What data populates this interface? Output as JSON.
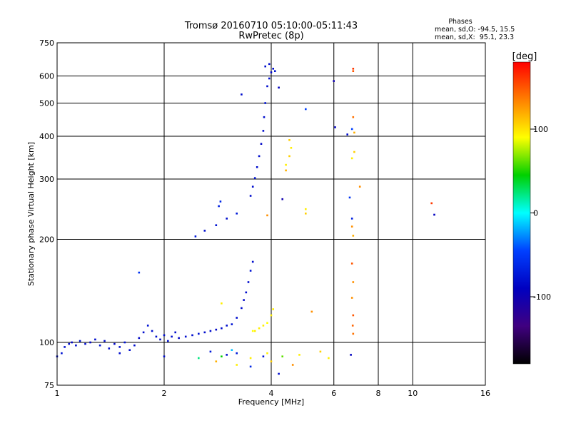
{
  "title": {
    "line1": "Tromsø 20160710 05:10:00-05:11:43",
    "line2": "RwPretec (8p)"
  },
  "phase_info": {
    "heading": "Phases",
    "line_o": "mean, sd,O: -94.5, 15.5",
    "line_x": "mean, sd,X:  95.1, 23.3"
  },
  "colorbar": {
    "label": "[deg]",
    "ticks": [
      "100",
      "0",
      "-100"
    ],
    "tick_values": [
      100,
      0,
      -100
    ],
    "range": [
      -180,
      180
    ],
    "colors": [
      "#ff0000",
      "#ff8000",
      "#ffff00",
      "#00d000",
      "#00ffff",
      "#0040ff",
      "#0000c0",
      "#400080",
      "#000000"
    ]
  },
  "chart_data": {
    "type": "scatter",
    "xlabel": "Frequency [MHz]",
    "ylabel": "Stationary phase Virtual Height [km]",
    "xscale": "log",
    "yscale": "log",
    "xlim": [
      1,
      16
    ],
    "ylim": [
      75,
      750
    ],
    "xticks": [
      1,
      2,
      4,
      6,
      8,
      10,
      16
    ],
    "xtick_labels": [
      "1",
      "2",
      "4",
      "6",
      "8",
      "10",
      "16"
    ],
    "yticks": [
      75,
      100,
      200,
      300,
      400,
      500,
      600,
      750
    ],
    "ytick_labels": [
      "75",
      "100",
      "200",
      "300",
      "400",
      "500",
      "600",
      "750"
    ],
    "grid": true,
    "series": [
      {
        "points": [
          [
            1.0,
            91,
            -100
          ],
          [
            1.03,
            93,
            -95
          ],
          [
            1.05,
            97,
            -100
          ],
          [
            1.08,
            99,
            -100
          ],
          [
            1.1,
            100,
            -105
          ],
          [
            1.13,
            98,
            -100
          ],
          [
            1.16,
            101,
            -95
          ],
          [
            1.2,
            99,
            -100
          ],
          [
            1.24,
            100,
            -105
          ],
          [
            1.28,
            102,
            -100
          ],
          [
            1.32,
            98,
            -95
          ],
          [
            1.36,
            101,
            -100
          ],
          [
            1.4,
            96,
            -100
          ],
          [
            1.45,
            99,
            -105
          ],
          [
            1.5,
            97,
            -100
          ],
          [
            1.55,
            100,
            -95
          ],
          [
            1.6,
            95,
            -100
          ],
          [
            1.65,
            98,
            -100
          ],
          [
            1.7,
            103,
            -105
          ],
          [
            1.75,
            107,
            -100
          ],
          [
            1.8,
            112,
            -95
          ],
          [
            1.85,
            108,
            -100
          ],
          [
            1.9,
            104,
            -100
          ],
          [
            1.95,
            102,
            -105
          ],
          [
            2.0,
            105,
            -100
          ],
          [
            2.05,
            101,
            -95
          ],
          [
            2.1,
            104,
            -100
          ],
          [
            2.15,
            107,
            -100
          ],
          [
            2.2,
            103,
            -105
          ],
          [
            2.3,
            104,
            -100
          ],
          [
            2.4,
            105,
            -100
          ],
          [
            2.5,
            106,
            -95
          ],
          [
            2.6,
            107,
            -100
          ],
          [
            2.7,
            108,
            -100
          ],
          [
            2.8,
            109,
            -105
          ],
          [
            2.9,
            110,
            -100
          ],
          [
            3.0,
            112,
            -100
          ],
          [
            3.1,
            113,
            -95
          ],
          [
            3.2,
            118,
            -100
          ],
          [
            3.3,
            126,
            -100
          ],
          [
            3.35,
            133,
            -105
          ],
          [
            3.4,
            140,
            -100
          ],
          [
            3.45,
            150,
            -100
          ],
          [
            3.5,
            162,
            -95
          ],
          [
            3.55,
            172,
            -100
          ],
          [
            2.45,
            204,
            -90
          ],
          [
            2.6,
            212,
            -100
          ],
          [
            2.8,
            220,
            -95
          ],
          [
            3.0,
            230,
            -100
          ],
          [
            3.2,
            238,
            -90
          ],
          [
            2.85,
            250,
            -85
          ],
          [
            2.88,
            258,
            -80
          ],
          [
            3.5,
            268,
            -100
          ],
          [
            3.55,
            285,
            -100
          ],
          [
            3.6,
            302,
            -95
          ],
          [
            3.65,
            325,
            -100
          ],
          [
            3.7,
            350,
            -100
          ],
          [
            3.75,
            380,
            -105
          ],
          [
            3.8,
            415,
            -100
          ],
          [
            3.82,
            455,
            -100
          ],
          [
            3.85,
            500,
            -95
          ],
          [
            3.9,
            560,
            -100
          ],
          [
            3.95,
            590,
            -100
          ],
          [
            4.0,
            615,
            -105
          ],
          [
            4.05,
            630,
            -100
          ],
          [
            4.1,
            620,
            -95
          ],
          [
            3.85,
            640,
            -100
          ],
          [
            3.95,
            650,
            -100
          ],
          [
            1.7,
            160,
            -70
          ],
          [
            3.3,
            530,
            -100
          ],
          [
            4.2,
            555,
            -110
          ],
          [
            5.0,
            480,
            -60
          ],
          [
            6.0,
            580,
            -120
          ],
          [
            6.05,
            425,
            -110
          ],
          [
            6.55,
            405,
            -100
          ],
          [
            6.75,
            420,
            -60
          ],
          [
            6.65,
            265,
            -70
          ],
          [
            6.75,
            230,
            -85
          ],
          [
            6.7,
            92,
            -110
          ],
          [
            11.5,
            236,
            -110
          ],
          [
            4.3,
            262,
            -120
          ],
          [
            3.2,
            93,
            -90
          ],
          [
            2.0,
            91,
            -100
          ],
          [
            1.5,
            93,
            -100
          ],
          [
            2.7,
            94,
            -90
          ],
          [
            3.0,
            92,
            -100
          ],
          [
            3.8,
            91,
            -95
          ],
          [
            4.2,
            81,
            -100
          ],
          [
            3.5,
            85,
            -80
          ],
          [
            3.6,
            108,
            100
          ],
          [
            3.7,
            110,
            100
          ],
          [
            3.8,
            112,
            100
          ],
          [
            3.9,
            114,
            95
          ],
          [
            4.0,
            120,
            100
          ],
          [
            4.05,
            125,
            100
          ],
          [
            3.55,
            108,
            95
          ],
          [
            2.9,
            130,
            100
          ],
          [
            4.4,
            330,
            100
          ],
          [
            4.4,
            318,
            120
          ],
          [
            4.5,
            390,
            110
          ],
          [
            4.55,
            370,
            100
          ],
          [
            4.5,
            350,
            110
          ],
          [
            5.0,
            245,
            100
          ],
          [
            5.0,
            238,
            110
          ],
          [
            3.9,
            235,
            130
          ],
          [
            5.2,
            123,
            130
          ],
          [
            6.8,
            630,
            160
          ],
          [
            6.8,
            620,
            150
          ],
          [
            6.8,
            455,
            140
          ],
          [
            6.85,
            410,
            120
          ],
          [
            6.85,
            360,
            110
          ],
          [
            6.75,
            218,
            130
          ],
          [
            6.8,
            205,
            120
          ],
          [
            6.75,
            170,
            150
          ],
          [
            6.8,
            150,
            130
          ],
          [
            6.75,
            135,
            130
          ],
          [
            6.8,
            120,
            150
          ],
          [
            6.78,
            112,
            145
          ],
          [
            6.8,
            106,
            140
          ],
          [
            7.1,
            285,
            130
          ],
          [
            11.3,
            255,
            160
          ],
          [
            6.75,
            345,
            100
          ],
          [
            5.8,
            90,
            100
          ],
          [
            5.5,
            94,
            110
          ],
          [
            4.8,
            92,
            100
          ],
          [
            4.6,
            86,
            130
          ],
          [
            4.0,
            88,
            110
          ],
          [
            3.5,
            90,
            100
          ],
          [
            3.2,
            86,
            100
          ],
          [
            2.8,
            88,
            120
          ],
          [
            3.9,
            93,
            100
          ],
          [
            2.9,
            91,
            40
          ],
          [
            2.5,
            90,
            20
          ],
          [
            3.1,
            95,
            -20
          ],
          [
            4.3,
            91,
            60
          ]
        ]
      }
    ]
  }
}
